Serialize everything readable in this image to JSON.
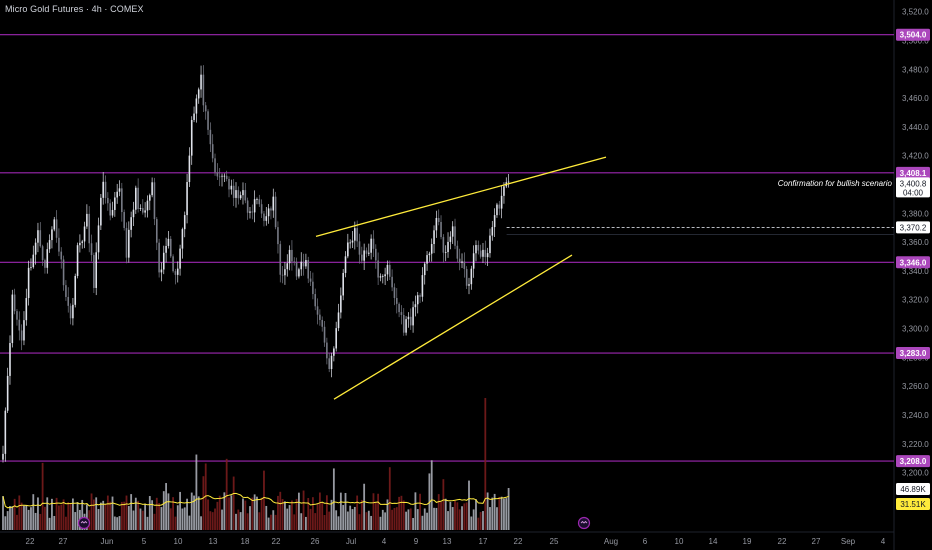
{
  "header": {
    "title": "Micro Gold Futures · 4h · COMEX"
  },
  "colors": {
    "background": "#000000",
    "level_line": "#9c27b0",
    "level_tag": "#ab47bc",
    "wedge_line": "#ffeb3b",
    "volume_ma": "#ffeb3b",
    "volume_up": "#b2b5be",
    "volume_down": "#7f1d1d",
    "price_tag": "#ffffff"
  },
  "icons": {
    "event_icon_left": "event-marker-icon",
    "event_icon_right": "event-marker-icon"
  },
  "chart_data": {
    "type": "candlestick",
    "title": "Micro Gold Futures · 4h · COMEX",
    "y_axis": {
      "ticks": [
        3200,
        3220,
        3240,
        3260,
        3280,
        3300,
        3320,
        3340,
        3360,
        3380,
        3400,
        3420,
        3440,
        3460,
        3480,
        3500,
        3520
      ],
      "tick_labels": [
        "3,200.0",
        "3,220.0",
        "3,240.0",
        "3,260.0",
        "3,280.0",
        "3,300.0",
        "3,320.0",
        "3,340.0",
        "3,360.0",
        "3,380.0",
        "3,400.0",
        "3,420.0",
        "3,440.0",
        "3,460.0",
        "3,480.0",
        "3,500.0",
        "3,520.0"
      ],
      "range": [
        3190,
        3526
      ],
      "position": "right"
    },
    "x_axis": {
      "ticks": [
        "22",
        "27",
        "Jun",
        "5",
        "10",
        "13",
        "18",
        "22",
        "26",
        "Jul",
        "4",
        "9",
        "13",
        "17",
        "22",
        "25",
        "Aug",
        "6",
        "10",
        "14",
        "19",
        "22",
        "27",
        "Sep",
        "4"
      ]
    },
    "horizontal_levels": [
      {
        "value": 3504.0,
        "label": "3,504.0"
      },
      {
        "value": 3408.1,
        "label": "3,408.1"
      },
      {
        "value": 3346.0,
        "label": "3,346.0"
      },
      {
        "value": 3283.0,
        "label": "3,283.0"
      },
      {
        "value": 3208.0,
        "label": "3,208.0"
      }
    ],
    "current_price": {
      "value": 3400.8,
      "label": "3,400.8",
      "countdown": "04:00"
    },
    "previous_close": {
      "value": 3370.2,
      "label": "3,370.2"
    },
    "annotation": {
      "text": "Confirmation for bullish scenario",
      "anchor_price": 3401.0
    },
    "wedge": {
      "upper": {
        "from": {
          "x": "Jun 25",
          "y": 3364
        },
        "to": {
          "x": "Jul 29",
          "y": 3419
        }
      },
      "lower": {
        "from": {
          "x": "Jun 27",
          "y": 3251
        },
        "to": {
          "x": "Jul 25",
          "y": 3351
        }
      }
    },
    "volume": {
      "current_label": "46.89K",
      "ma_label": "31.51K"
    },
    "price_path": [
      [
        0,
        3218
      ],
      [
        4,
        3320
      ],
      [
        8,
        3292
      ],
      [
        11,
        3340
      ],
      [
        15,
        3365
      ],
      [
        18,
        3345
      ],
      [
        22,
        3376
      ],
      [
        25,
        3345
      ],
      [
        29,
        3305
      ],
      [
        32,
        3354
      ],
      [
        36,
        3375
      ],
      [
        39,
        3333
      ],
      [
        43,
        3404
      ],
      [
        46,
        3374
      ],
      [
        50,
        3398
      ],
      [
        53,
        3354
      ],
      [
        57,
        3394
      ],
      [
        60,
        3376
      ],
      [
        64,
        3398
      ],
      [
        67,
        3334
      ],
      [
        71,
        3365
      ],
      [
        74,
        3334
      ],
      [
        78,
        3380
      ],
      [
        81,
        3446
      ],
      [
        85,
        3472
      ],
      [
        88,
        3433
      ],
      [
        92,
        3402
      ],
      [
        95,
        3408
      ],
      [
        99,
        3390
      ],
      [
        102,
        3396
      ],
      [
        106,
        3378
      ],
      [
        109,
        3390
      ],
      [
        113,
        3375
      ],
      [
        116,
        3389
      ],
      [
        119,
        3338
      ],
      [
        123,
        3354
      ],
      [
        126,
        3338
      ],
      [
        130,
        3345
      ],
      [
        133,
        3324
      ],
      [
        137,
        3300
      ],
      [
        140,
        3272
      ],
      [
        144,
        3308
      ],
      [
        147,
        3353
      ],
      [
        151,
        3369
      ],
      [
        154,
        3347
      ],
      [
        158,
        3359
      ],
      [
        161,
        3338
      ],
      [
        165,
        3340
      ],
      [
        168,
        3322
      ],
      [
        172,
        3302
      ],
      [
        175,
        3307
      ],
      [
        179,
        3327
      ],
      [
        182,
        3347
      ],
      [
        186,
        3377
      ],
      [
        189,
        3353
      ],
      [
        193,
        3366
      ],
      [
        196,
        3346
      ],
      [
        200,
        3330
      ],
      [
        203,
        3358
      ],
      [
        207,
        3348
      ],
      [
        210,
        3372
      ],
      [
        213,
        3388
      ],
      [
        217,
        3402
      ]
    ]
  }
}
